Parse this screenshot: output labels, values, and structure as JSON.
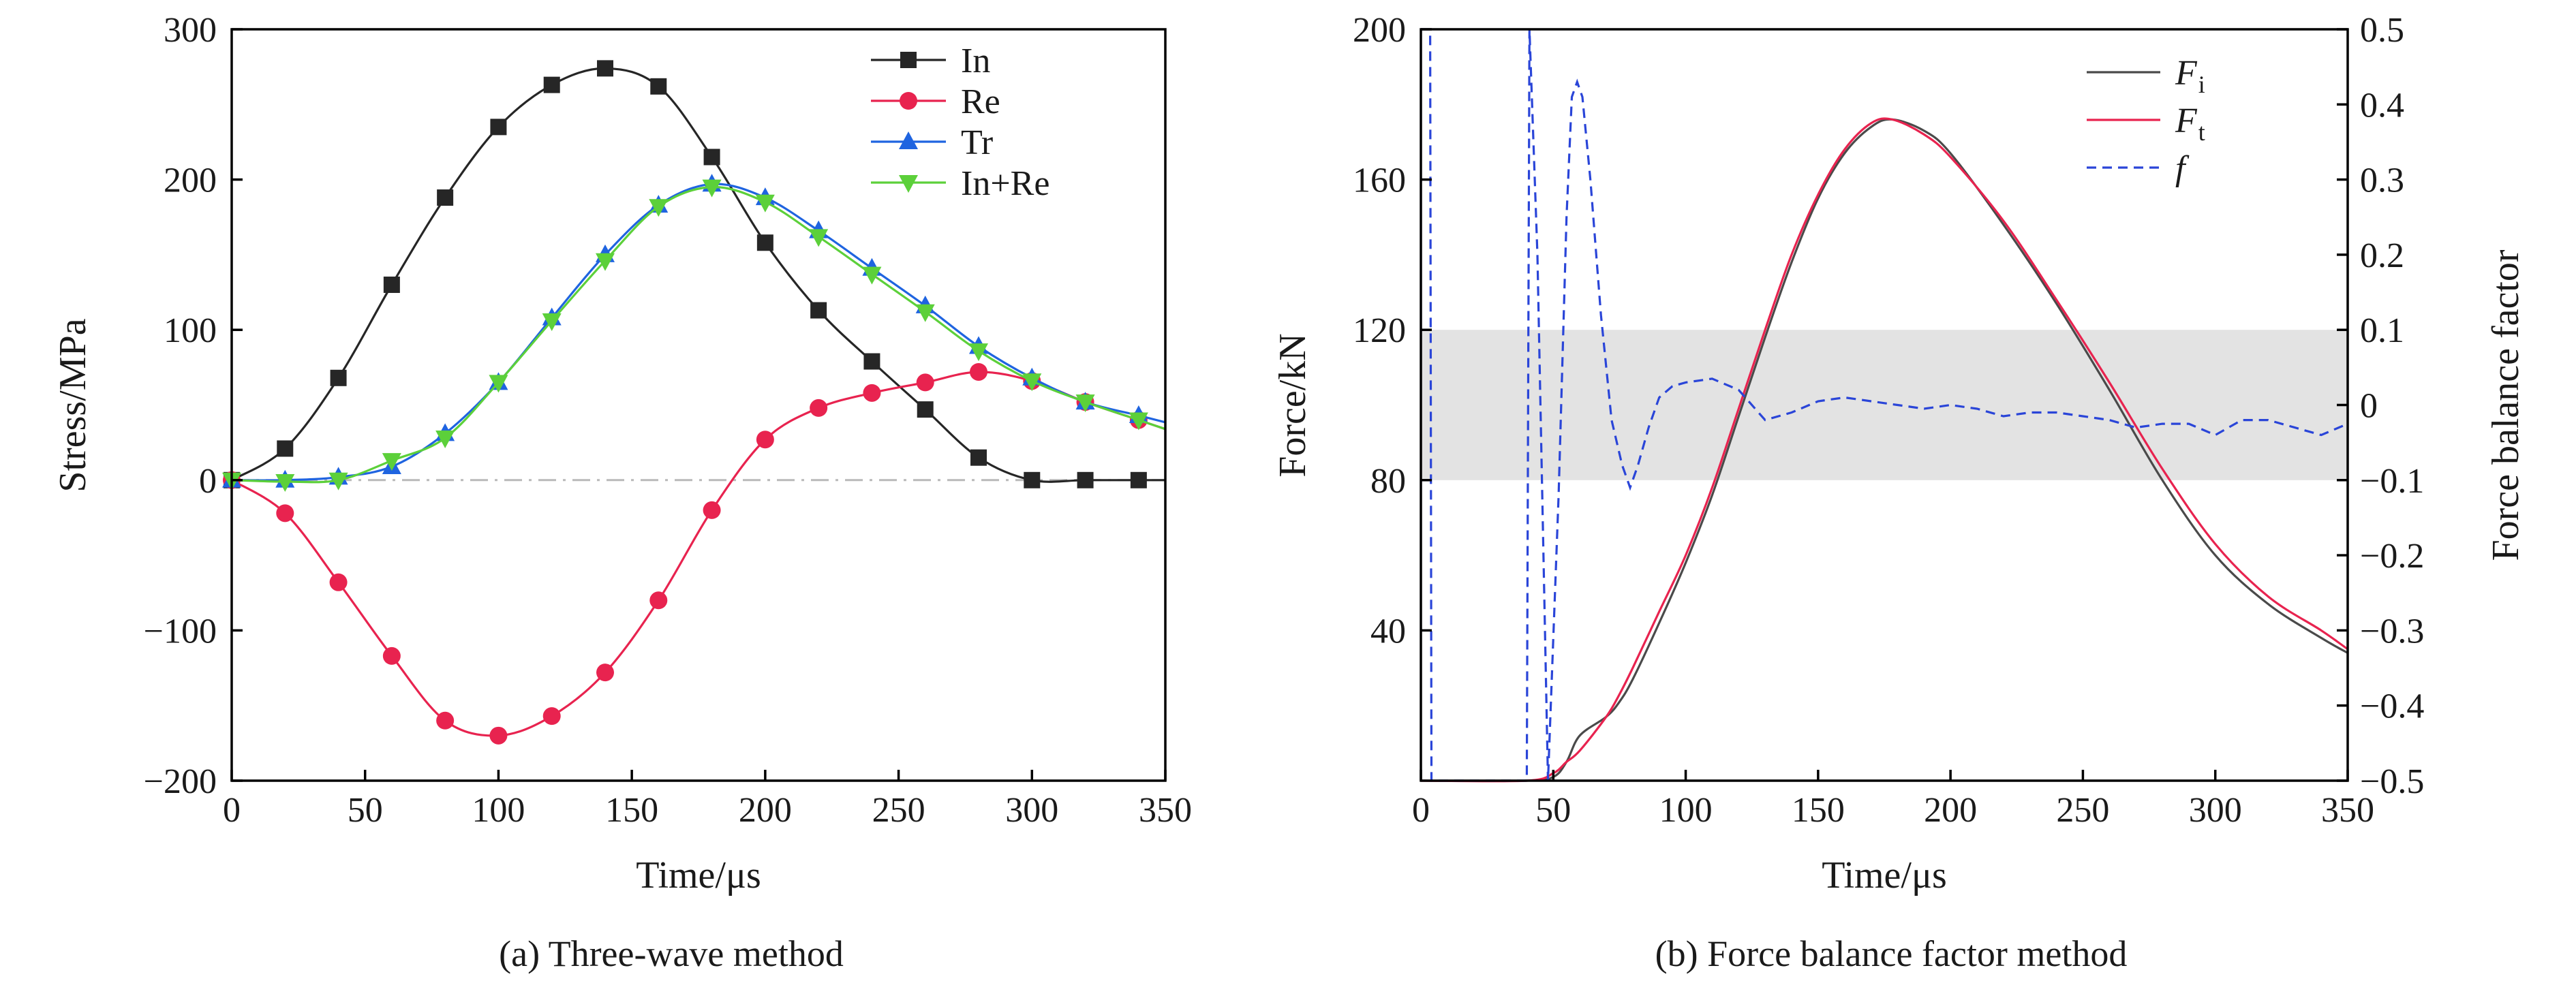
{
  "chart_data": [
    {
      "type": "line",
      "caption": "(a) Three-wave method",
      "xlabel": "Time/μs",
      "ylabel": "Stress/MPa",
      "xlim": [
        0,
        350
      ],
      "ylim": [
        -200,
        300
      ],
      "xticks": [
        "0",
        "50",
        "100",
        "150",
        "200",
        "250",
        "300",
        "350"
      ],
      "yticks": [
        "300",
        "200",
        "100",
        "0",
        "−100",
        "−200"
      ],
      "legend_position": "top-right",
      "zero_line": "dash-dot",
      "series": [
        {
          "name": "In",
          "marker": "square",
          "color": "#262626",
          "x": [
            0,
            20,
            40,
            60,
            80,
            100,
            120,
            140,
            160,
            180,
            200,
            220,
            240,
            260,
            280,
            300,
            320,
            340
          ],
          "values": [
            0,
            21,
            68,
            130,
            188,
            235,
            263,
            274,
            262,
            215,
            158,
            113,
            79,
            47,
            15,
            0,
            0,
            0
          ]
        },
        {
          "name": "Re",
          "marker": "circle",
          "color": "#e8234f",
          "x": [
            0,
            20,
            40,
            60,
            80,
            100,
            120,
            140,
            160,
            180,
            200,
            220,
            240,
            260,
            280,
            300,
            320,
            340
          ],
          "values": [
            0,
            -22,
            -68,
            -117,
            -160,
            -170,
            -157,
            -128,
            -80,
            -20,
            27,
            48,
            58,
            65,
            72,
            66,
            52,
            40
          ]
        },
        {
          "name": "Tr",
          "marker": "triangle-up",
          "color": "#1f64e0",
          "x": [
            0,
            20,
            40,
            60,
            80,
            100,
            120,
            140,
            160,
            180,
            200,
            220,
            240,
            260,
            280,
            300,
            320,
            340
          ],
          "values": [
            0,
            0,
            2,
            9,
            31,
            65,
            108,
            150,
            183,
            197,
            188,
            166,
            141,
            116,
            89,
            68,
            52,
            43
          ]
        },
        {
          "name": "In+Re",
          "marker": "triangle-down",
          "color": "#5cd03a",
          "x": [
            0,
            20,
            40,
            60,
            80,
            100,
            120,
            140,
            160,
            180,
            200,
            220,
            240,
            260,
            280,
            300,
            320,
            340
          ],
          "values": [
            0,
            -1,
            0,
            13,
            28,
            65,
            106,
            146,
            182,
            195,
            185,
            162,
            137,
            112,
            86,
            66,
            52,
            40
          ]
        }
      ]
    },
    {
      "type": "line",
      "caption": "(b) Force balance factor method",
      "xlabel": "Time/μs",
      "ylabel": "Force/kN",
      "y2label": "Force balance factor",
      "xlim": [
        0,
        350
      ],
      "ylim": [
        0,
        200
      ],
      "y2lim": [
        -0.5,
        0.5
      ],
      "xticks": [
        "0",
        "50",
        "100",
        "150",
        "200",
        "250",
        "300",
        "350"
      ],
      "yticks": [
        "200",
        "160",
        "120",
        "80",
        "40"
      ],
      "y2ticks": [
        "0.5",
        "0.4",
        "0.3",
        "0.2",
        "0.1",
        "0",
        "−0.1",
        "−0.2",
        "−0.3",
        "−0.4",
        "−0.5"
      ],
      "legend_position": "top-right",
      "shaded_band_y2": [
        -0.1,
        0.1
      ],
      "band_color": "#e3e3e3",
      "series": [
        {
          "name": "F",
          "subscript": "i",
          "axis": "left",
          "color": "#4a4a4a",
          "x": [
            0,
            40,
            50,
            55,
            60,
            70,
            75,
            80,
            90,
            100,
            110,
            120,
            130,
            140,
            150,
            160,
            170,
            178,
            190,
            200,
            220,
            240,
            260,
            280,
            300,
            320,
            340,
            350
          ],
          "values": [
            0,
            0,
            1,
            5,
            12,
            17,
            21,
            27,
            42,
            58,
            76,
            97,
            118,
            138,
            155,
            167,
            174,
            176,
            173,
            167,
            148,
            127,
            104,
            80,
            60,
            47,
            38,
            34
          ]
        },
        {
          "name": "F",
          "subscript": "t",
          "axis": "left",
          "color": "#e8234f",
          "x": [
            0,
            40,
            50,
            55,
            60,
            70,
            75,
            80,
            90,
            100,
            110,
            120,
            130,
            140,
            150,
            160,
            170,
            178,
            190,
            200,
            220,
            240,
            260,
            280,
            300,
            320,
            340,
            350
          ],
          "values": [
            0,
            0,
            2,
            5,
            8,
            17,
            23,
            30,
            45,
            60,
            78,
            99,
            120,
            140,
            156,
            168,
            175,
            176,
            172,
            166,
            149,
            128,
            106,
            83,
            63,
            49,
            40,
            35
          ]
        },
        {
          "name": "f",
          "axis": "right",
          "style": "dashed",
          "color": "#2a45d8",
          "x": [
            0,
            3.5,
            4,
            5,
            40,
            41,
            44,
            48,
            52,
            55,
            57,
            59,
            61,
            64,
            68,
            72,
            76,
            79,
            82,
            86,
            90,
            95,
            100,
            110,
            120,
            130,
            140,
            150,
            160,
            170,
            180,
            190,
            200,
            210,
            220,
            230,
            240,
            250,
            260,
            270,
            280,
            290,
            300,
            310,
            320,
            330,
            340,
            350
          ],
          "values": [
            0.5,
            0.5,
            -0.5,
            -0.5,
            -0.5,
            0.5,
            0.2,
            -0.5,
            -0.12,
            0.25,
            0.41,
            0.43,
            0.41,
            0.3,
            0.12,
            -0.02,
            -0.08,
            -0.11,
            -0.08,
            -0.03,
            0.01,
            0.025,
            0.03,
            0.035,
            0.02,
            -0.02,
            -0.01,
            0.005,
            0.01,
            0.005,
            0,
            -0.005,
            0,
            -0.005,
            -0.015,
            -0.01,
            -0.01,
            -0.015,
            -0.02,
            -0.03,
            -0.025,
            -0.025,
            -0.04,
            -0.02,
            -0.02,
            -0.03,
            -0.04,
            -0.025
          ]
        }
      ]
    }
  ]
}
